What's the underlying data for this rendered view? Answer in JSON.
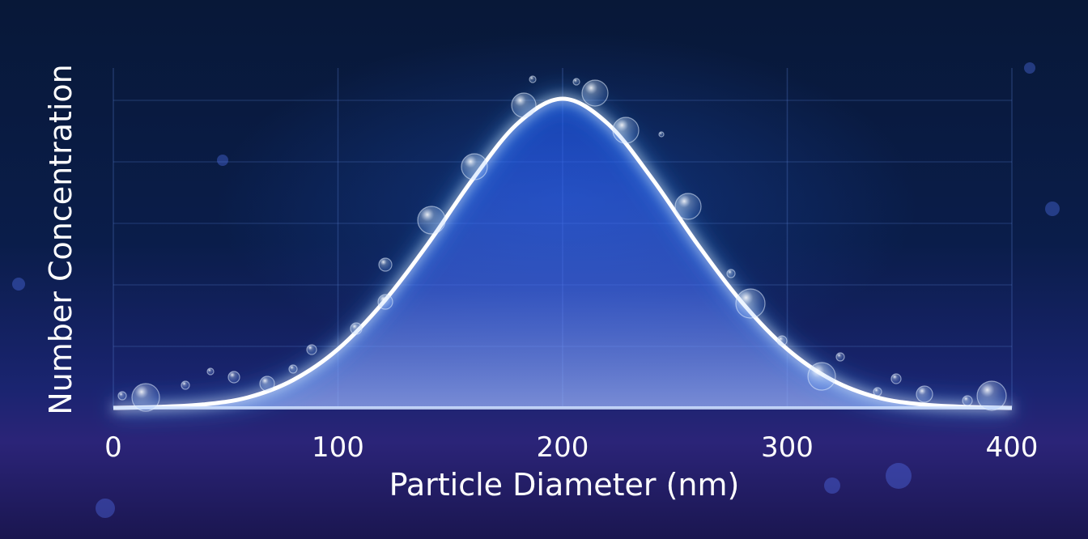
{
  "chart_data": {
    "type": "area",
    "title": "",
    "xlabel": "Particle Diameter (nm)",
    "ylabel": "Number Concentration",
    "xlim": [
      0,
      400
    ],
    "ylim": [
      0,
      1.05
    ],
    "x_ticks": [
      "0",
      "100",
      "200",
      "300",
      "400"
    ],
    "grid": true,
    "legend": "none",
    "series": [
      {
        "x": [
          0,
          20,
          40,
          60,
          80,
          100,
          120,
          140,
          160,
          180,
          200,
          220,
          240,
          260,
          280,
          300,
          320,
          340,
          360,
          380,
          400
        ],
        "y": [
          0.0,
          0.003,
          0.011,
          0.034,
          0.09,
          0.19,
          0.34,
          0.53,
          0.74,
          0.92,
          1.0,
          0.92,
          0.74,
          0.53,
          0.34,
          0.19,
          0.09,
          0.034,
          0.011,
          0.003,
          0.0
        ]
      }
    ],
    "colors": {
      "line": "#ffffff",
      "glow": "#4aa8ff",
      "fill_top": "#3a7bff",
      "fill_bottom": "#8fb6ff"
    }
  }
}
